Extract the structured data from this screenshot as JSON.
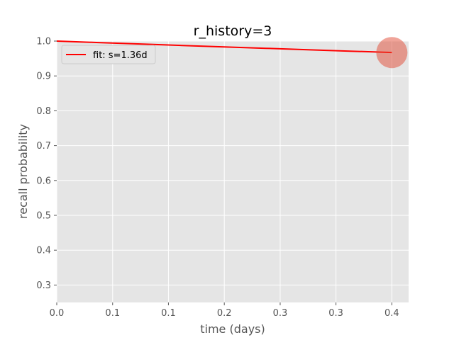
{
  "chart_data": {
    "type": "line",
    "title": "r_history=3",
    "xlabel": "time (days)",
    "ylabel": "recall probability",
    "xlim": [
      0,
      0.42
    ],
    "ylim": [
      0.25,
      1.0
    ],
    "x_ticks": [
      0.0,
      0.0667,
      0.1333,
      0.2,
      0.2667,
      0.3333,
      0.4
    ],
    "x_tick_labels": [
      "0.0",
      "0.1",
      "0.1",
      "0.2",
      "0.3",
      "0.3",
      "0.4"
    ],
    "y_ticks": [
      0.3,
      0.4,
      0.5,
      0.6,
      0.7,
      0.8,
      0.9,
      1.0
    ],
    "y_tick_labels": [
      "0.3",
      "0.4",
      "0.5",
      "0.6",
      "0.7",
      "0.8",
      "0.9",
      "1.0"
    ],
    "grid": true,
    "legend_position": "top-left",
    "series": [
      {
        "name": "fit: s=1.36d",
        "color": "#ff0000",
        "x": [
          0.0,
          0.05,
          0.1,
          0.15,
          0.2,
          0.25,
          0.3,
          0.35,
          0.4
        ],
        "y": [
          1.0,
          0.9957,
          0.9916,
          0.9874,
          0.9833,
          0.9793,
          0.9752,
          0.9712,
          0.9672
        ]
      }
    ],
    "points": [
      {
        "x": 0.4,
        "y": 0.967,
        "color": "#e24a33",
        "opacity": 0.5
      }
    ]
  }
}
